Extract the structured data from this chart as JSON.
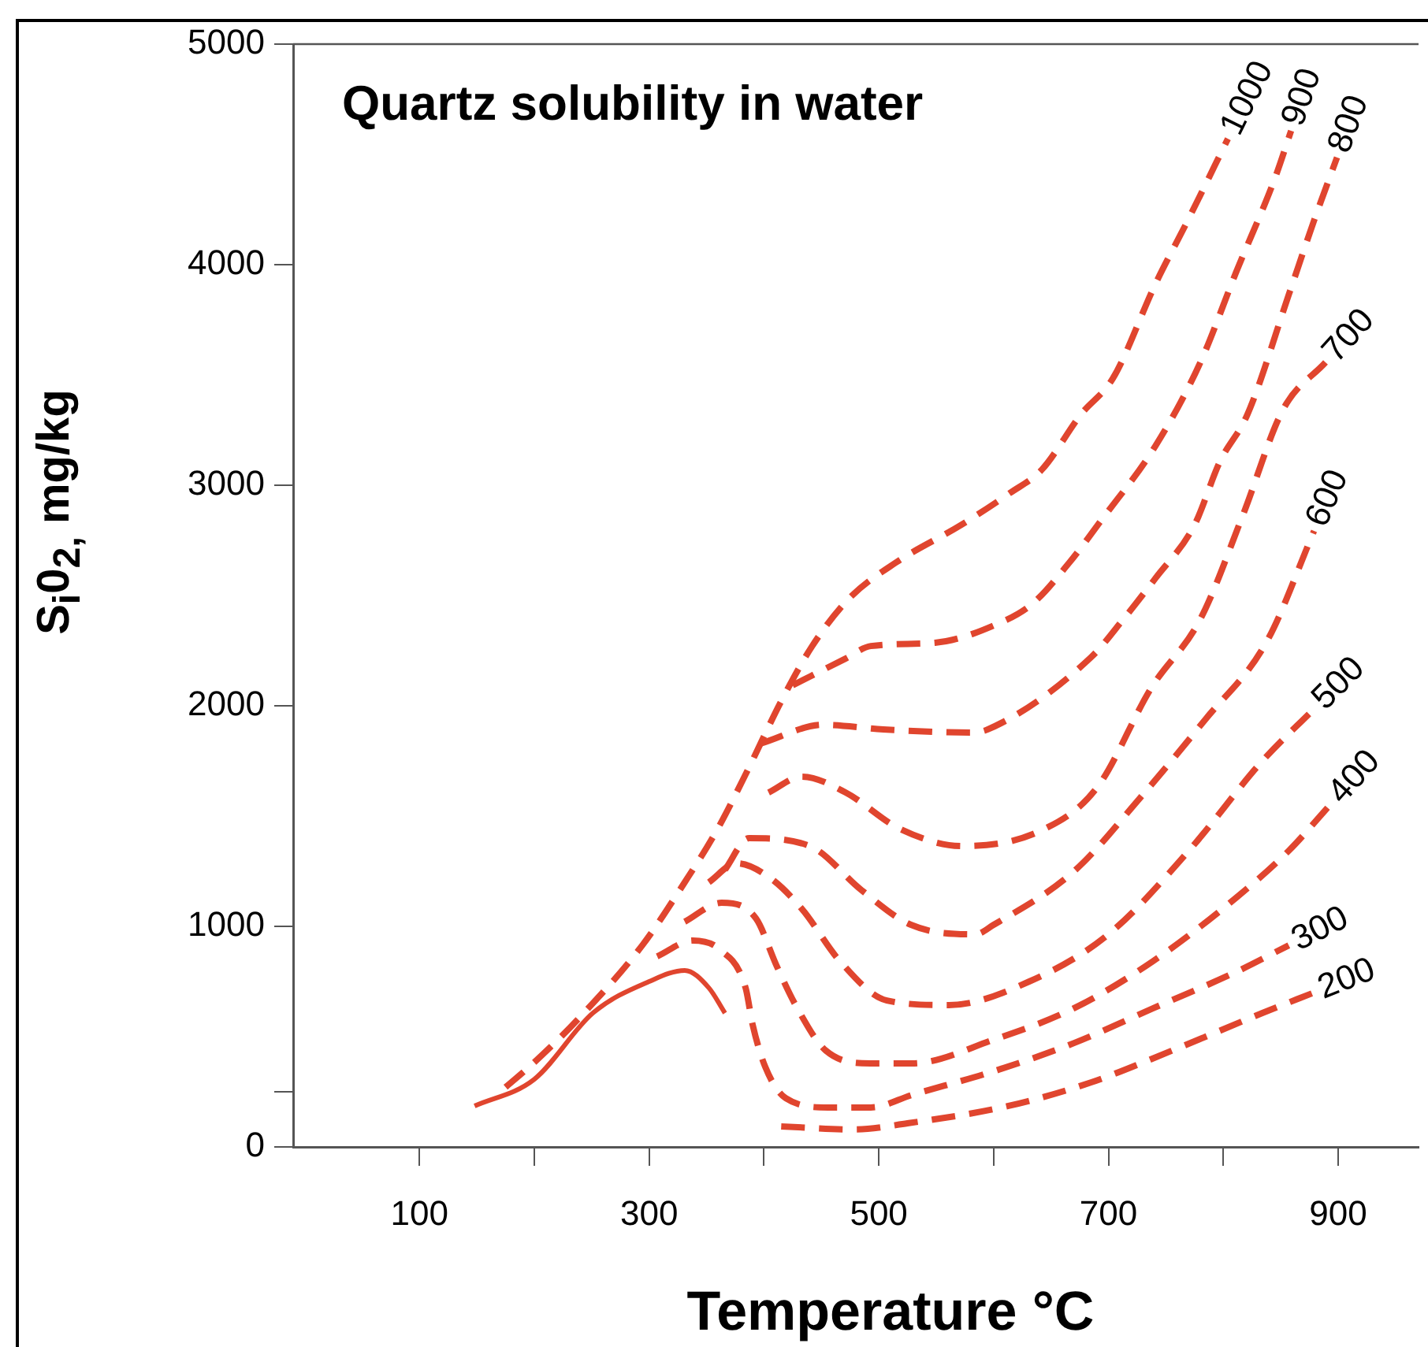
{
  "chart_data": {
    "type": "line",
    "title": "Quartz solubility in water",
    "xlabel": "Temperature °C",
    "ylabel": "S$_{i}$0$_{2,}$ mg/kg",
    "xlim": [
      -10,
      970
    ],
    "xticks": [
      100,
      {
        "value": 200,
        "label": null
      },
      300,
      {
        "value": 400,
        "label": null
      },
      500,
      {
        "value": 600,
        "label": null
      },
      700,
      {
        "value": 800,
        "label": null
      },
      900
    ],
    "ylim": [
      0,
      5000
    ],
    "yticks": [
      0,
      {
        "value": 250,
        "label": null
      },
      1000,
      2000,
      3000,
      4000,
      5000
    ],
    "grid": false,
    "legend": false,
    "marker": "none",
    "line_style": "dashed",
    "series": [
      {
        "color": "#e0452e",
        "line_style": "solid",
        "x": [
          148,
          200,
          251,
          300,
          331,
          352,
          366
        ],
        "values": [
          186,
          307,
          607,
          750,
          800,
          721,
          607
        ]
      },
      {
        "name": "200",
        "color": "#e0452e",
        "x": [
          415,
          479,
          525,
          613,
          685,
          755,
          834,
          879
        ],
        "values": [
          93,
          79,
          107,
          186,
          293,
          436,
          607,
          700
        ]
      },
      {
        "name": "300",
        "color": "#e0452e",
        "x": [
          307,
          338,
          362,
          384,
          390,
          401,
          419,
          456,
          493,
          529,
          600,
          670,
          739,
          811,
          857
        ],
        "values": [
          864,
          936,
          893,
          721,
          557,
          364,
          221,
          179,
          179,
          236,
          343,
          471,
          629,
          793,
          914
        ]
      },
      {
        "name": "400",
        "color": "#e0452e",
        "x": [
          331,
          363,
          393,
          411,
          429,
          454,
          493,
          529,
          600,
          670,
          739,
          811,
          857,
          894
        ],
        "values": [
          1021,
          1107,
          1036,
          821,
          629,
          436,
          379,
          379,
          486,
          629,
          843,
          1129,
          1343,
          1557
        ]
      },
      {
        "name": "500",
        "color": "#e0452e",
        "x": [
          352,
          376,
          405,
          433,
          466,
          507,
          561,
          631,
          700,
          770,
          834,
          879
        ],
        "values": [
          1200,
          1286,
          1221,
          1079,
          843,
          664,
          643,
          750,
          964,
          1343,
          1750,
          1986
        ]
      },
      {
        "name": "600",
        "color": "#e0452e",
        "x": [
          366,
          387,
          440,
          485,
          528,
          584,
          600,
          670,
          727,
          784,
          838,
          879
        ],
        "values": [
          1257,
          1400,
          1364,
          1164,
          1007,
          964,
          1007,
          1250,
          1579,
          1936,
          2293,
          2793
        ]
      },
      {
        "name": "700",
        "color": "#e0452e",
        "x": [
          404,
          433,
          471,
          518,
          573,
          642,
          690,
          737,
          780,
          817,
          852,
          889
        ],
        "values": [
          1607,
          1679,
          1607,
          1443,
          1364,
          1436,
          1629,
          2079,
          2393,
          2864,
          3343,
          3557
        ]
      },
      {
        "name": "800",
        "color": "#e0452e",
        "x": [
          397,
          452,
          504,
          580,
          595,
          685,
          713,
          741,
          775,
          797,
          821,
          857,
          879,
          899
        ],
        "values": [
          1829,
          1914,
          1893,
          1879,
          1893,
          2221,
          2393,
          2579,
          2821,
          3107,
          3321,
          3864,
          4200,
          4486
        ]
      },
      {
        "name": "900",
        "color": "#e0452e",
        "x": [
          425,
          471,
          493,
          549,
          600,
          634,
          666,
          694,
          741,
          780,
          811,
          845,
          859
        ],
        "values": [
          2093,
          2214,
          2271,
          2286,
          2364,
          2464,
          2650,
          2843,
          3179,
          3557,
          3964,
          4393,
          4607
        ]
      },
      {
        "name": "1000",
        "color": "#e0452e",
        "x": [
          175,
          199,
          238,
          294,
          331,
          359,
          387,
          415,
          442,
          474,
          515,
          572,
          614,
          642,
          676,
          704,
          741,
          769,
          804
        ],
        "values": [
          271,
          379,
          579,
          914,
          1200,
          1436,
          1721,
          2021,
          2271,
          2486,
          2650,
          2821,
          2964,
          3071,
          3321,
          3486,
          3914,
          4200,
          4571
        ]
      }
    ]
  }
}
